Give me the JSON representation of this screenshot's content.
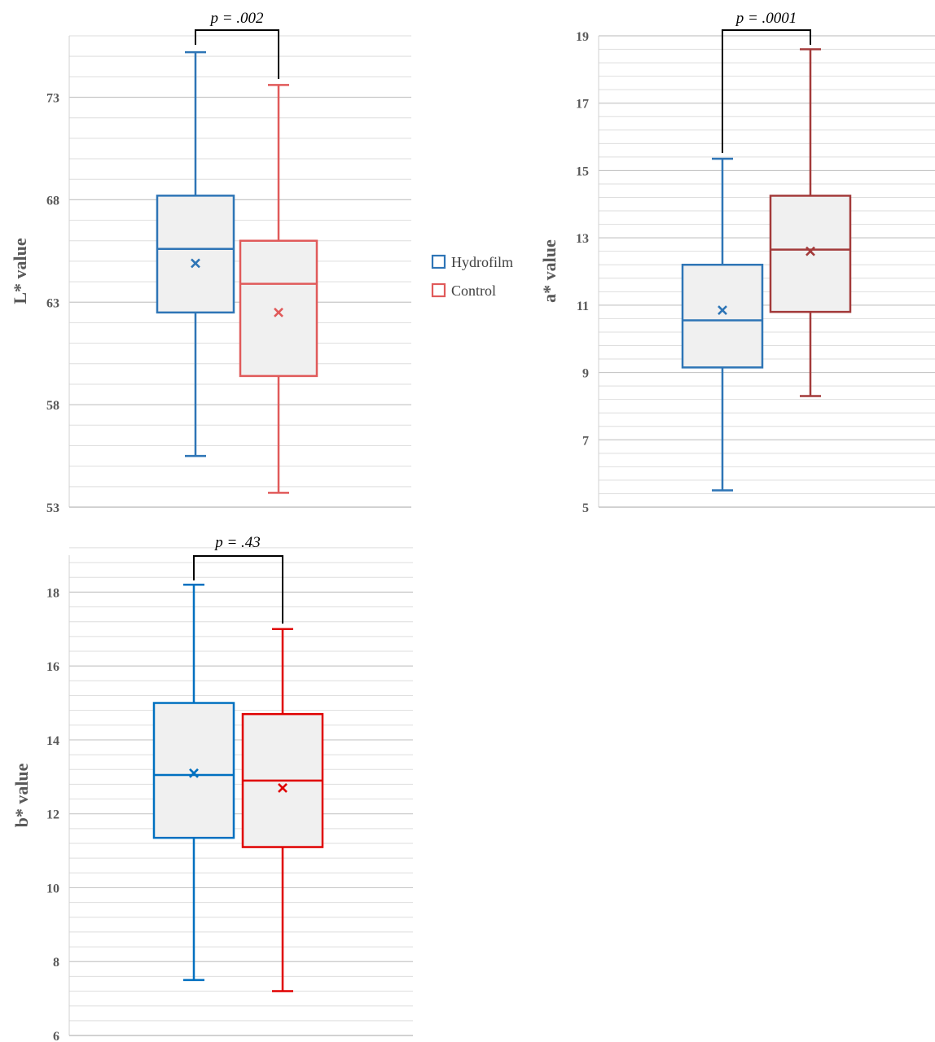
{
  "legend": {
    "entries": [
      {
        "label": "Hydrofilm",
        "color": "#2E75B6"
      },
      {
        "label": "Control",
        "color": "#E05A5A"
      }
    ]
  },
  "chart_data": [
    {
      "type": "boxplot",
      "ylabel": "L* value",
      "ylim": [
        53,
        76
      ],
      "yticks": [
        53,
        58,
        63,
        68,
        73
      ],
      "minor_step": 1,
      "grid": true,
      "significance_label": "p = .002",
      "series": [
        {
          "name": "Hydrofilm",
          "color": "#2E75B6",
          "min": 55.5,
          "q1": 62.5,
          "median": 65.6,
          "q3": 68.2,
          "max": 75.2,
          "mean": 64.9
        },
        {
          "name": "Control",
          "color": "#E05A5A",
          "min": 53.7,
          "q1": 59.4,
          "median": 63.9,
          "q3": 66.0,
          "max": 73.6,
          "mean": 62.5
        }
      ]
    },
    {
      "type": "boxplot",
      "ylabel": "a* value",
      "ylim": [
        5,
        19
      ],
      "yticks": [
        5,
        7,
        9,
        11,
        13,
        15,
        17,
        19
      ],
      "minor_step": 0.4,
      "grid": true,
      "significance_label": "p = .0001",
      "series": [
        {
          "name": "Hydrofilm",
          "color": "#2E75B6",
          "min": 5.5,
          "q1": 9.15,
          "median": 10.55,
          "q3": 12.2,
          "max": 15.35,
          "mean": 10.85
        },
        {
          "name": "Control",
          "color": "#A33A3A",
          "min": 8.3,
          "q1": 10.8,
          "median": 12.65,
          "q3": 14.25,
          "max": 18.6,
          "mean": 12.6
        }
      ]
    },
    {
      "type": "boxplot",
      "ylabel": "b* value",
      "ylim": [
        6,
        19
      ],
      "yticks": [
        6,
        8,
        10,
        12,
        14,
        16,
        18
      ],
      "minor_step": 0.4,
      "grid": true,
      "significance_label": "p = .43",
      "series": [
        {
          "name": "Hydrofilm",
          "color": "#0070C0",
          "min": 7.5,
          "q1": 11.35,
          "median": 13.05,
          "q3": 15.0,
          "max": 18.2,
          "mean": 13.1
        },
        {
          "name": "Control",
          "color": "#E00000",
          "min": 7.2,
          "q1": 11.1,
          "median": 12.9,
          "q3": 14.7,
          "max": 17.0,
          "mean": 12.7
        }
      ]
    }
  ]
}
